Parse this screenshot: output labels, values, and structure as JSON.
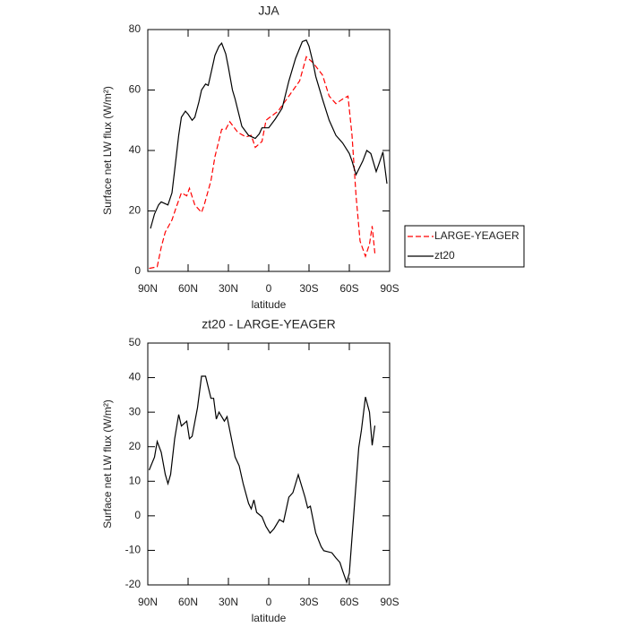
{
  "chart_data": [
    {
      "type": "line",
      "title": "JJA",
      "xlabel": "latitude",
      "ylabel": "Surface net LW flux (W/m²)",
      "xlim": [
        90,
        -90
      ],
      "xticks": [
        {
          "value": 90,
          "label": "90N"
        },
        {
          "value": 60,
          "label": "60N"
        },
        {
          "value": 30,
          "label": "30N"
        },
        0,
        {
          "value": -30,
          "label": "30S"
        },
        {
          "value": -60,
          "label": "60S"
        },
        {
          "value": -90,
          "label": "90S"
        }
      ],
      "ylim": [
        0,
        80
      ],
      "yticks": [
        0,
        20,
        40,
        60,
        80
      ],
      "legend": "right",
      "series": [
        {
          "name": "LARGE-YEAGER",
          "color": "#ff0000",
          "dash": "dashed",
          "x": [
            89,
            83,
            80,
            77,
            72,
            69,
            65,
            61,
            59,
            55,
            50,
            48,
            43,
            40,
            35,
            32,
            29,
            23,
            17,
            13,
            10,
            5,
            2,
            0,
            -7,
            -23,
            -28,
            -33,
            -40,
            -45,
            -50,
            -55,
            -59,
            -62,
            -65,
            -68,
            -72,
            -75,
            -77,
            -79
          ],
          "values": [
            1,
            1.5,
            8,
            13,
            17,
            21,
            26,
            25,
            27.5,
            22,
            19.5,
            22,
            30,
            38,
            47,
            47,
            49.5,
            46,
            44.5,
            45,
            41,
            43,
            50,
            50.7,
            53,
            63,
            71,
            69,
            65,
            58,
            55.5,
            57,
            58,
            45,
            25,
            10,
            5,
            9,
            15,
            6
          ]
        },
        {
          "name": "zt20",
          "color": "#000000",
          "dash": "solid",
          "x": [
            88,
            85,
            82,
            80,
            75,
            72,
            70,
            67,
            65,
            62,
            60,
            57,
            55,
            52,
            50,
            47,
            45,
            42,
            40,
            37,
            35,
            32,
            30,
            27,
            25,
            20,
            15,
            10,
            7,
            5,
            0,
            -5,
            -10,
            -15,
            -20,
            -25,
            -28,
            -30,
            -33,
            -35,
            -40,
            -45,
            -50,
            -55,
            -60,
            -62,
            -65,
            -70,
            -73,
            -76,
            -80,
            -82,
            -85,
            -88
          ],
          "values": [
            14.2,
            19,
            22,
            23,
            22,
            26,
            33.5,
            45,
            51,
            53,
            52,
            50,
            51,
            56,
            60,
            62,
            61.5,
            67.5,
            71.5,
            74.5,
            75.5,
            72,
            67.5,
            60,
            57,
            48,
            45,
            44,
            45.5,
            47.5,
            47.5,
            50.5,
            54,
            63,
            70.5,
            76,
            76.5,
            74.5,
            69,
            64.5,
            57,
            50,
            45,
            42.5,
            39,
            36.5,
            32,
            36.5,
            40,
            39,
            33,
            35.5,
            39.5,
            29
          ]
        }
      ]
    },
    {
      "type": "line",
      "title": "zt20 - LARGE-YEAGER",
      "xlabel": "latitude",
      "ylabel": "Surface net LW flux (W/m²)",
      "xlim": [
        90,
        -90
      ],
      "xticks": [
        {
          "value": 90,
          "label": "90N"
        },
        {
          "value": 60,
          "label": "60N"
        },
        {
          "value": 30,
          "label": "30N"
        },
        0,
        {
          "value": -30,
          "label": "30S"
        },
        {
          "value": -60,
          "label": "60S"
        },
        {
          "value": -90,
          "label": "90S"
        }
      ],
      "ylim": [
        -20,
        50
      ],
      "yticks": [
        -20,
        -10,
        0,
        10,
        20,
        30,
        40,
        50
      ],
      "series": [
        {
          "color": "#000000",
          "dash": "solid",
          "x": [
            89,
            85,
            83,
            80,
            77,
            75,
            73,
            70,
            67,
            65,
            61,
            59,
            57,
            53,
            50,
            47,
            43,
            41,
            39,
            37,
            33,
            31,
            29,
            25,
            22,
            19,
            15,
            13,
            11,
            9,
            5,
            2,
            -1,
            -4,
            -8,
            -11,
            -15,
            -18,
            -22,
            -27,
            -29,
            -31,
            -35,
            -39,
            -41,
            -47,
            -50,
            -53,
            -55,
            -58,
            -60,
            -63,
            -67,
            -69,
            -72,
            -75,
            -77,
            -79
          ],
          "values": [
            13.2,
            17,
            21.5,
            18.4,
            12,
            9.3,
            12,
            22.3,
            29.3,
            26,
            27.4,
            22.3,
            23,
            31.3,
            40.4,
            40.4,
            34,
            34,
            28,
            30,
            27.4,
            28.7,
            24.8,
            17,
            14.5,
            9.3,
            3.6,
            2,
            4.6,
            1,
            -0.3,
            -3.1,
            -5,
            -3.7,
            -1.1,
            -1.8,
            5.4,
            6.7,
            11.9,
            5.4,
            2.3,
            2.8,
            -5,
            -8.9,
            -10.1,
            -10.7,
            -12.2,
            -13.5,
            -15.9,
            -19.2,
            -16.6,
            -1.1,
            19.7,
            24.8,
            34.4,
            30,
            20.4,
            26.1
          ]
        }
      ]
    }
  ]
}
